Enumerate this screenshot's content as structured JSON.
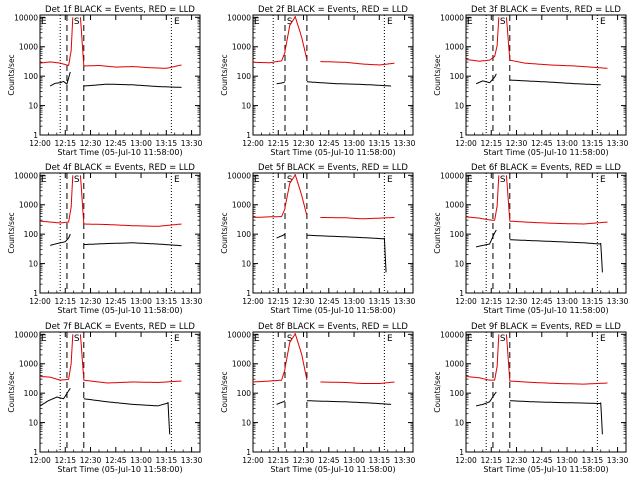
{
  "figure": {
    "x_ticks": [
      "12:00",
      "12:15",
      "12:30",
      "12:45",
      "13:00",
      "13:15",
      "13:30"
    ],
    "y_ticks": [
      "1",
      "10",
      "100",
      "1000",
      "10000"
    ],
    "ylabel": "Counts/sec",
    "xlabel": "Start Time (05-Jul-10 11:58:00)",
    "colors": {
      "events": "#000000",
      "lld": "#e00000"
    }
  },
  "chart_data": [
    {
      "type": "line",
      "title": "Det 1f BLACK = Events, RED = LLD",
      "markers": [
        {
          "label": "E",
          "t": 0
        },
        {
          "label": "S",
          "t": 19.5
        },
        {
          "label": "E",
          "t": 79
        }
      ],
      "ylim": [
        1,
        12000
      ],
      "series": [
        {
          "name": "Events",
          "points": [
            [
              6,
              50
            ],
            [
              9,
              62
            ],
            [
              12,
              65
            ],
            [
              14,
              72
            ],
            [
              16,
              58
            ],
            [
              17.5,
              120
            ],
            [
              18,
              150
            ]
          ],
          "after": [
            [
              26,
              50
            ],
            [
              40,
              58
            ],
            [
              55,
              55
            ],
            [
              70,
              48
            ],
            [
              84,
              45
            ]
          ]
        },
        {
          "name": "LLD",
          "points": [
            [
              0,
              300
            ],
            [
              6,
              330
            ],
            [
              12,
              300
            ],
            [
              17,
              250
            ],
            [
              18.5,
              800
            ],
            [
              19.5,
              10000
            ]
          ],
          "after": [
            [
              24,
              10000
            ],
            [
              26,
              240
            ],
            [
              35,
              250
            ],
            [
              45,
              220
            ],
            [
              55,
              230
            ],
            [
              65,
              210
            ],
            [
              75,
              200
            ],
            [
              84,
              260
            ]
          ]
        }
      ]
    },
    {
      "type": "line",
      "title": "Det 2f BLACK = Events, RED = LLD",
      "markers": [
        {
          "label": "E",
          "t": 0
        },
        {
          "label": "S",
          "t": 19.5
        },
        {
          "label": "E",
          "t": 79
        }
      ],
      "ylim": [
        1,
        12000
      ],
      "series": [
        {
          "name": "Events",
          "points": [
            [
              14,
              60
            ],
            [
              16,
              62
            ],
            [
              18,
              65
            ],
            [
              19,
              70
            ]
          ],
          "after": [
            [
              32,
              70
            ],
            [
              40,
              65
            ],
            [
              50,
              60
            ],
            [
              60,
              58
            ],
            [
              70,
              55
            ],
            [
              82,
              50
            ]
          ]
        },
        {
          "name": "LLD",
          "points": [
            [
              0,
              320
            ],
            [
              10,
              310
            ],
            [
              17,
              360
            ],
            [
              19,
              700
            ],
            [
              22,
              6000
            ],
            [
              25,
              11000
            ],
            [
              29,
              2000
            ],
            [
              32,
              360
            ]
          ],
          "after": [
            [
              40,
              340
            ],
            [
              55,
              320
            ],
            [
              65,
              280
            ],
            [
              75,
              260
            ],
            [
              84,
              300
            ]
          ]
        }
      ]
    },
    {
      "type": "line",
      "title": "Det 3f BLACK = Events, RED = LLD",
      "markers": [
        {
          "label": "E",
          "t": 0
        },
        {
          "label": "S",
          "t": 19.5
        },
        {
          "label": "E",
          "t": 79
        }
      ],
      "ylim": [
        1,
        12000
      ],
      "series": [
        {
          "name": "Events",
          "points": [
            [
              6,
              60
            ],
            [
              10,
              75
            ],
            [
              14,
              65
            ],
            [
              17,
              100
            ],
            [
              18,
              130
            ]
          ],
          "after": [
            [
              26,
              80
            ],
            [
              35,
              75
            ],
            [
              50,
              68
            ],
            [
              65,
              60
            ],
            [
              80,
              55
            ]
          ]
        },
        {
          "name": "LLD",
          "points": [
            [
              0,
              400
            ],
            [
              8,
              350
            ],
            [
              14,
              380
            ],
            [
              17,
              500
            ],
            [
              18.5,
              1200
            ],
            [
              19.5,
              10000
            ]
          ],
          "after": [
            [
              24,
              10000
            ],
            [
              26,
              380
            ],
            [
              35,
              300
            ],
            [
              50,
              260
            ],
            [
              65,
              240
            ],
            [
              84,
              200
            ]
          ]
        }
      ]
    },
    {
      "type": "line",
      "title": "Det 4f BLACK = Events, RED = LLD",
      "markers": [
        {
          "label": "E",
          "t": 0
        },
        {
          "label": "S",
          "t": 19.5
        },
        {
          "label": "E",
          "t": 79
        }
      ],
      "ylim": [
        1,
        12000
      ],
      "series": [
        {
          "name": "Events",
          "points": [
            [
              6,
              45
            ],
            [
              9,
              50
            ],
            [
              12,
              55
            ],
            [
              15,
              60
            ],
            [
              17,
              80
            ],
            [
              18,
              110
            ]
          ],
          "after": [
            [
              26,
              48
            ],
            [
              40,
              52
            ],
            [
              55,
              55
            ],
            [
              70,
              50
            ],
            [
              84,
              44
            ]
          ]
        },
        {
          "name": "LLD",
          "points": [
            [
              0,
              300
            ],
            [
              6,
              280
            ],
            [
              12,
              260
            ],
            [
              17,
              280
            ],
            [
              18.5,
              900
            ],
            [
              19.5,
              10000
            ]
          ],
          "after": [
            [
              24,
              10000
            ],
            [
              26,
              240
            ],
            [
              40,
              230
            ],
            [
              55,
              210
            ],
            [
              70,
              200
            ],
            [
              84,
              240
            ]
          ]
        }
      ]
    },
    {
      "type": "line",
      "title": "Det 5f BLACK = Events, RED = LLD",
      "markers": [
        {
          "label": "E",
          "t": 0
        },
        {
          "label": "S",
          "t": 19.5
        },
        {
          "label": "E",
          "t": 79
        }
      ],
      "ylim": [
        1,
        12000
      ],
      "series": [
        {
          "name": "Events",
          "points": [
            [
              14,
              80
            ],
            [
              16,
              90
            ],
            [
              18,
              100
            ],
            [
              19,
              110
            ]
          ],
          "after": [
            [
              32,
              100
            ],
            [
              40,
              95
            ],
            [
              55,
              88
            ],
            [
              70,
              80
            ],
            [
              78,
              75
            ],
            [
              79,
              5
            ]
          ]
        },
        {
          "name": "LLD",
          "points": [
            [
              0,
              400
            ],
            [
              10,
              420
            ],
            [
              17,
              430
            ],
            [
              19,
              800
            ],
            [
              22,
              6000
            ],
            [
              25,
              11000
            ],
            [
              29,
              2000
            ],
            [
              32,
              420
            ]
          ],
          "after": [
            [
              40,
              400
            ],
            [
              55,
              390
            ],
            [
              65,
              360
            ],
            [
              75,
              380
            ],
            [
              84,
              400
            ]
          ]
        }
      ]
    },
    {
      "type": "line",
      "title": "Det 6f BLACK = Events, RED = LLD",
      "markers": [
        {
          "label": "E",
          "t": 0
        },
        {
          "label": "S",
          "t": 19.5
        },
        {
          "label": "E",
          "t": 79
        }
      ],
      "ylim": [
        1,
        12000
      ],
      "series": [
        {
          "name": "Events",
          "points": [
            [
              6,
              40
            ],
            [
              10,
              45
            ],
            [
              14,
              50
            ],
            [
              17,
              120
            ],
            [
              18,
              150
            ]
          ],
          "after": [
            [
              26,
              70
            ],
            [
              40,
              65
            ],
            [
              55,
              60
            ],
            [
              70,
              55
            ],
            [
              80,
              50
            ],
            [
              81,
              5
            ]
          ]
        },
        {
          "name": "LLD",
          "points": [
            [
              0,
              420
            ],
            [
              8,
              380
            ],
            [
              14,
              330
            ],
            [
              17,
              320
            ],
            [
              18.5,
              1000
            ],
            [
              19.5,
              10000
            ]
          ],
          "after": [
            [
              24,
              10000
            ],
            [
              26,
              300
            ],
            [
              40,
              270
            ],
            [
              55,
              250
            ],
            [
              70,
              240
            ],
            [
              84,
              280
            ]
          ]
        }
      ]
    },
    {
      "type": "line",
      "title": "Det 7f BLACK = Events, RED = LLD",
      "markers": [
        {
          "label": "E",
          "t": 0
        },
        {
          "label": "S",
          "t": 19.5
        },
        {
          "label": "E",
          "t": 79
        }
      ],
      "ylim": [
        1,
        12000
      ],
      "series": [
        {
          "name": "Events",
          "points": [
            [
              0,
              40
            ],
            [
              5,
              60
            ],
            [
              10,
              80
            ],
            [
              14,
              70
            ],
            [
              17,
              130
            ],
            [
              18,
              160
            ]
          ],
          "after": [
            [
              26,
              70
            ],
            [
              40,
              55
            ],
            [
              55,
              45
            ],
            [
              70,
              40
            ],
            [
              76,
              50
            ],
            [
              77,
              4
            ]
          ]
        },
        {
          "name": "LLD",
          "points": [
            [
              0,
              400
            ],
            [
              6,
              380
            ],
            [
              12,
              300
            ],
            [
              17,
              320
            ],
            [
              18.5,
              1100
            ],
            [
              19.5,
              10000
            ]
          ],
          "after": [
            [
              24,
              10000
            ],
            [
              26,
              300
            ],
            [
              40,
              240
            ],
            [
              55,
              260
            ],
            [
              70,
              250
            ],
            [
              84,
              280
            ]
          ]
        }
      ]
    },
    {
      "type": "line",
      "title": "Det 8f BLACK = Events, RED = LLD",
      "markers": [
        {
          "label": "E",
          "t": 0
        },
        {
          "label": "S",
          "t": 19.5
        },
        {
          "label": "E",
          "t": 79
        }
      ],
      "ylim": [
        1,
        12000
      ],
      "series": [
        {
          "name": "Events",
          "points": [
            [
              14,
              45
            ],
            [
              16,
              50
            ],
            [
              18,
              55
            ],
            [
              19,
              60
            ]
          ],
          "after": [
            [
              32,
              60
            ],
            [
              40,
              58
            ],
            [
              55,
              55
            ],
            [
              70,
              50
            ],
            [
              82,
              45
            ]
          ]
        },
        {
          "name": "LLD",
          "points": [
            [
              0,
              260
            ],
            [
              10,
              280
            ],
            [
              17,
              300
            ],
            [
              19,
              700
            ],
            [
              22,
              6000
            ],
            [
              25,
              11000
            ],
            [
              29,
              2000
            ],
            [
              32,
              280
            ]
          ],
          "after": [
            [
              40,
              260
            ],
            [
              55,
              250
            ],
            [
              65,
              230
            ],
            [
              75,
              230
            ],
            [
              84,
              260
            ]
          ]
        }
      ]
    },
    {
      "type": "line",
      "title": "Det 9f BLACK = Events, RED = LLD",
      "markers": [
        {
          "label": "E",
          "t": 0
        },
        {
          "label": "S",
          "t": 19.5
        },
        {
          "label": "E",
          "t": 79
        }
      ],
      "ylim": [
        1,
        12000
      ],
      "series": [
        {
          "name": "Events",
          "points": [
            [
              6,
              40
            ],
            [
              10,
              45
            ],
            [
              14,
              55
            ],
            [
              17,
              100
            ],
            [
              18,
              120
            ]
          ],
          "after": [
            [
              26,
              60
            ],
            [
              40,
              55
            ],
            [
              55,
              52
            ],
            [
              70,
              50
            ],
            [
              80,
              48
            ],
            [
              81,
              4
            ]
          ]
        },
        {
          "name": "LLD",
          "points": [
            [
              0,
              400
            ],
            [
              8,
              360
            ],
            [
              14,
              300
            ],
            [
              17,
              300
            ],
            [
              18.5,
              900
            ],
            [
              19.5,
              10000
            ]
          ],
          "after": [
            [
              24,
              10000
            ],
            [
              26,
              280
            ],
            [
              40,
              250
            ],
            [
              55,
              230
            ],
            [
              70,
              220
            ],
            [
              84,
              240
            ]
          ]
        }
      ]
    }
  ]
}
